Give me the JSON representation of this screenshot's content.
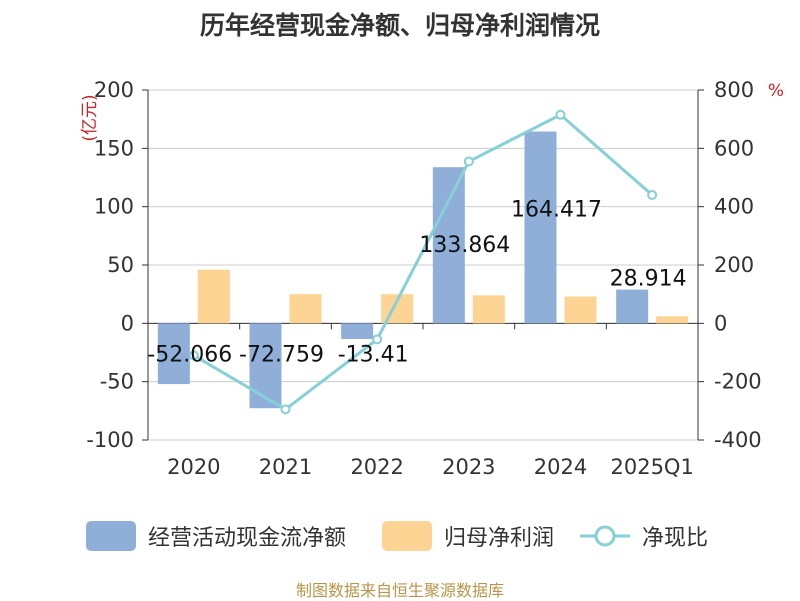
{
  "chart_data": {
    "type": "bar+line",
    "title": "历年经营现金净额、归母净利润情况",
    "categories": [
      "2020",
      "2021",
      "2022",
      "2023",
      "2024",
      "2025Q1"
    ],
    "series": [
      {
        "name": "经营活动现金流净额",
        "type": "bar",
        "axis": "left",
        "color": "#8fafd9",
        "values": [
          -52.066,
          -72.759,
          -13.41,
          133.864,
          164.417,
          28.914
        ],
        "labels": [
          "-52.066",
          "-72.759",
          "-13.41",
          "133.864",
          "164.417",
          "28.914"
        ]
      },
      {
        "name": "归母净利润",
        "type": "bar",
        "axis": "left",
        "color": "#fdd493",
        "values": [
          46,
          25,
          25,
          24,
          23,
          6
        ]
      },
      {
        "name": "净现比",
        "type": "line",
        "axis": "right",
        "color": "#86d0d8",
        "values": [
          -110,
          -295,
          -55,
          555,
          715,
          440
        ]
      }
    ],
    "y_left": {
      "unit": "(亿元)",
      "min": -100,
      "max": 200,
      "ticks": [
        200,
        150,
        100,
        50,
        0,
        -50,
        -100
      ]
    },
    "y_right": {
      "unit": "%",
      "min": -400,
      "max": 800,
      "ticks": [
        800,
        600,
        400,
        200,
        0,
        -200,
        -400
      ]
    },
    "grid": true,
    "legend_position": "bottom"
  },
  "source_text": "制图数据来自恒生聚源数据库"
}
